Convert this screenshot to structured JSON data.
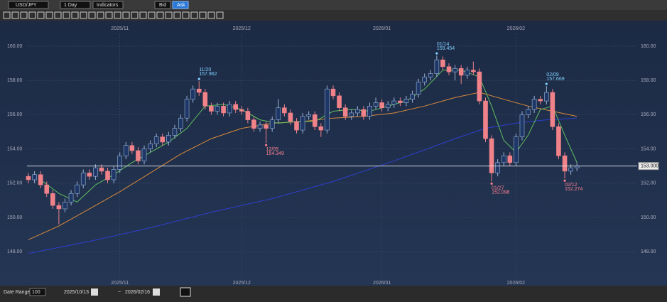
{
  "toolbar": {
    "symbol": "USD/JPY",
    "period": "1 Day",
    "indicators": "Indicators",
    "bid": "Bid",
    "ask": "Ask"
  },
  "footer": {
    "range_label": "Date Range:",
    "range_value": "100",
    "from": "2025/10/13",
    "sep": "~",
    "to": "2026/02/16"
  },
  "chart_data": {
    "type": "candlestick",
    "ylim": [
      146.1,
      161.45
    ],
    "yticks": [
      {
        "value": 148,
        "label": "148.00"
      },
      {
        "value": 150,
        "label": "150.00"
      },
      {
        "value": 152,
        "label": "152.00"
      },
      {
        "value": 154,
        "label": "154.00"
      },
      {
        "value": 156,
        "label": "156.00"
      },
      {
        "value": 158,
        "label": "158.00"
      },
      {
        "value": 160,
        "label": "160.00"
      }
    ],
    "xticks": [
      {
        "value": 15,
        "label": "2025/11"
      },
      {
        "value": 35,
        "label": "2025/12"
      },
      {
        "value": 58,
        "label": "2026/01"
      },
      {
        "value": 80,
        "label": "2026/02"
      }
    ],
    "grid": true,
    "up_color": "#1e3766",
    "down_color": "#f0828a",
    "open": [
      152.4,
      152.2,
      152.5,
      151.9,
      151.4,
      150.7,
      150.5,
      150.9,
      151.4,
      151.9,
      152.6,
      152.4,
      152.9,
      152.7,
      152.2,
      152.8,
      153.6,
      154.2,
      153.9,
      153.3,
      154.0,
      154.3,
      154.7,
      154.4,
      154.8,
      155.2,
      155.8,
      156.9,
      157.5,
      157.3,
      156.5,
      156.2,
      156.5,
      156.1,
      156.6,
      156.3,
      156.2,
      155.7,
      155.2,
      155.4,
      155.2,
      155.7,
      156.4,
      156.1,
      155.6,
      155.1,
      155.9,
      156.0,
      155.3,
      155.1,
      157.5,
      157.1,
      156.4,
      155.9,
      156.1,
      156.3,
      155.9,
      156.5,
      156.7,
      156.4,
      156.6,
      156.8,
      156.7,
      156.9,
      157.2,
      157.9,
      158.2,
      158.4,
      159.2,
      158.8,
      158.5,
      158.7,
      158.3,
      158.6,
      158.5,
      156.8,
      154.6,
      152.6,
      153.2,
      153.6,
      153.2,
      154.7,
      156.0,
      156.3,
      156.9,
      156.8,
      157.3,
      155.3,
      153.6,
      152.7,
      152.9
    ],
    "high": [
      152.6,
      152.7,
      152.7,
      152.1,
      151.6,
      150.9,
      151.1,
      151.6,
      152.1,
      152.8,
      152.8,
      153.1,
      153.1,
      152.9,
      153.0,
      153.8,
      154.4,
      154.4,
      154.1,
      154.2,
      154.5,
      154.9,
      154.9,
      155.0,
      155.4,
      156.0,
      157.1,
      157.7,
      157.962,
      157.5,
      156.7,
      156.7,
      156.7,
      156.8,
      156.8,
      156.5,
      156.4,
      155.9,
      155.6,
      155.6,
      155.9,
      156.9,
      156.6,
      156.3,
      155.8,
      156.1,
      156.2,
      156.2,
      155.5,
      157.7,
      157.7,
      157.3,
      156.6,
      156.3,
      156.5,
      156.5,
      156.7,
      157.0,
      156.9,
      156.8,
      157.0,
      157.0,
      157.1,
      157.4,
      158.1,
      158.4,
      158.6,
      159.454,
      159.4,
      159.0,
      158.9,
      158.9,
      158.8,
      159.1,
      158.7,
      157.0,
      154.8,
      153.4,
      153.8,
      153.8,
      154.9,
      156.2,
      156.5,
      157.1,
      157.1,
      157.669,
      157.5,
      155.5,
      153.8,
      153.1,
      153.2
    ],
    "low": [
      152.0,
      152.0,
      151.7,
      151.2,
      150.5,
      149.6,
      150.3,
      150.7,
      151.2,
      151.7,
      152.2,
      152.2,
      152.5,
      152.0,
      152.0,
      152.6,
      153.4,
      153.7,
      153.1,
      153.1,
      153.8,
      154.1,
      154.2,
      154.2,
      154.6,
      155.0,
      155.6,
      156.7,
      157.1,
      156.3,
      156.0,
      156.0,
      155.9,
      155.9,
      156.1,
      156.0,
      155.5,
      155.0,
      155.0,
      154.349,
      155.0,
      155.5,
      155.9,
      155.4,
      154.9,
      154.9,
      155.7,
      155.1,
      154.7,
      154.9,
      156.9,
      156.2,
      155.7,
      155.7,
      155.9,
      155.7,
      155.7,
      156.3,
      156.2,
      156.2,
      156.4,
      156.5,
      156.5,
      156.7,
      157.0,
      157.7,
      158.0,
      158.2,
      158.6,
      158.3,
      158.0,
      157.8,
      158.1,
      158.3,
      156.6,
      154.4,
      152.098,
      152.4,
      153.0,
      153.0,
      153.0,
      154.5,
      155.8,
      156.1,
      156.6,
      156.6,
      155.1,
      153.4,
      152.274,
      152.5,
      152.7
    ],
    "close": [
      152.2,
      152.5,
      151.9,
      151.4,
      150.7,
      150.5,
      150.9,
      151.4,
      151.9,
      152.6,
      152.4,
      152.9,
      152.7,
      152.2,
      152.8,
      153.6,
      154.2,
      153.9,
      153.3,
      154.0,
      154.3,
      154.7,
      154.4,
      154.8,
      155.2,
      155.8,
      156.9,
      157.5,
      157.3,
      156.5,
      156.2,
      156.5,
      156.1,
      156.6,
      156.3,
      156.2,
      155.7,
      155.2,
      155.4,
      155.2,
      155.7,
      156.4,
      156.1,
      155.6,
      155.1,
      155.9,
      156.0,
      155.3,
      155.1,
      157.5,
      157.1,
      156.4,
      155.9,
      156.1,
      156.3,
      155.9,
      156.5,
      156.7,
      156.4,
      156.6,
      156.8,
      156.7,
      156.9,
      157.2,
      157.9,
      158.2,
      158.4,
      159.2,
      158.8,
      158.5,
      158.7,
      158.3,
      158.6,
      158.5,
      156.8,
      154.6,
      152.6,
      153.2,
      153.6,
      153.2,
      154.7,
      156.0,
      156.3,
      156.9,
      156.8,
      157.3,
      155.3,
      153.6,
      152.7,
      152.9,
      153.0
    ],
    "overlays": [
      {
        "color": "#2e3fd0",
        "x": [
          0,
          10,
          20,
          30,
          40,
          50,
          60,
          70,
          75,
          80,
          85,
          90
        ],
        "values": [
          147.9,
          148.6,
          149.4,
          150.3,
          151.1,
          152.1,
          153.3,
          154.6,
          155.2,
          155.5,
          155.7,
          155.8
        ]
      },
      {
        "color": "#d98a3a",
        "x": [
          0,
          5,
          10,
          15,
          20,
          25,
          30,
          35,
          40,
          45,
          50,
          55,
          60,
          65,
          70,
          74,
          78,
          82,
          86,
          90
        ],
        "values": [
          148.7,
          149.5,
          150.5,
          151.5,
          152.6,
          153.7,
          154.6,
          155.2,
          155.5,
          155.6,
          155.8,
          155.9,
          156.1,
          156.5,
          157.0,
          157.3,
          156.9,
          156.5,
          156.2,
          155.9
        ]
      },
      {
        "color": "#5fbf5f",
        "x": [
          2,
          5,
          8,
          11,
          14,
          17,
          20,
          23,
          26,
          29,
          32,
          35,
          38,
          41,
          44,
          47,
          50,
          53,
          56,
          59,
          62,
          65,
          68,
          71,
          74,
          76,
          78,
          80,
          82,
          84,
          86,
          88,
          90
        ],
        "values": [
          152.2,
          151.4,
          150.9,
          151.9,
          152.5,
          153.2,
          153.8,
          154.4,
          155.2,
          156.5,
          156.6,
          156.3,
          155.7,
          155.5,
          155.6,
          155.6,
          156.2,
          156.3,
          156.2,
          156.5,
          156.8,
          157.5,
          158.6,
          158.6,
          158.2,
          156.5,
          154.5,
          153.8,
          154.8,
          156.3,
          156.5,
          154.8,
          153.2
        ]
      }
    ],
    "hline": {
      "value": 153,
      "label": "153.000"
    },
    "annotations": [
      {
        "date": "11/20",
        "value": 157.962,
        "label": "157.962",
        "at": "high"
      },
      {
        "date": "12/05",
        "value": 154.349,
        "label": "154.349",
        "at": "low"
      },
      {
        "date": "01/14",
        "value": 159.454,
        "label": "159.454",
        "at": "high"
      },
      {
        "date": "01/27",
        "value": 152.098,
        "label": "152.098",
        "at": "low"
      },
      {
        "date": "02/09",
        "value": 157.669,
        "label": "157.669",
        "at": "high"
      },
      {
        "date": "02/12",
        "value": 152.274,
        "label": "152.274",
        "at": "low"
      }
    ]
  }
}
